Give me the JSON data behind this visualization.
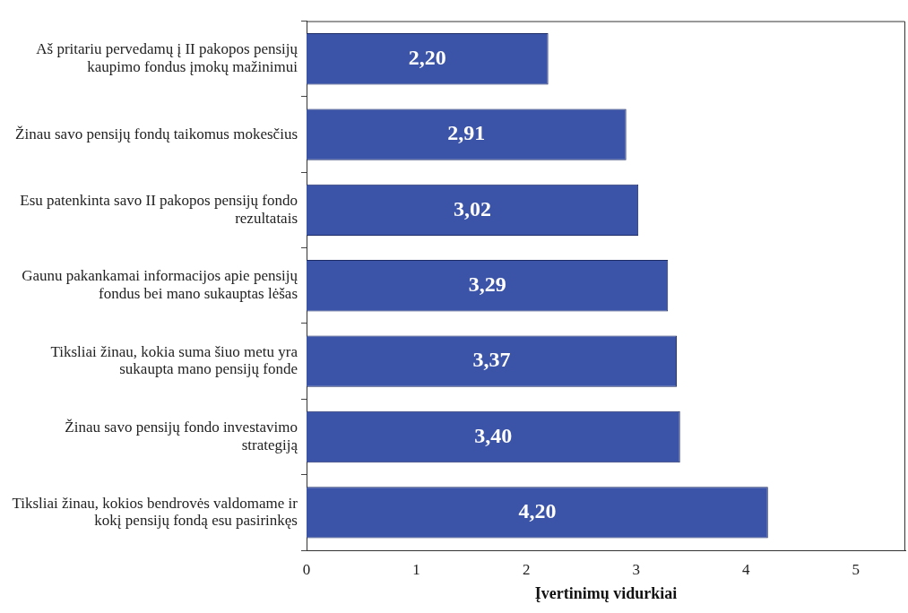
{
  "chart_data": {
    "type": "bar",
    "orientation": "horizontal",
    "xlabel": "Įvertinimų vidurkiai",
    "categories": [
      "Aš pritariu pervedamų į II pakopos pensijų kaupimo fondus įmokų mažinimui",
      "Žinau savo pensijų fondų taikomus mokesčius",
      "Esu patenkinta savo II pakopos pensijų fondo rezultatais",
      "Gaunu pakankamai informacijos apie pensijų fondus bei mano sukauptas lėšas",
      "Tiksliai žinau, kokia suma šiuo metu yra sukaupta mano pensijų fonde",
      "Žinau savo pensijų fondo investavimo strategiją",
      "Tiksliai žinau, kokios bendrovės valdomame ir kokį pensijų fondą esu pasirinkęs"
    ],
    "values": [
      2.2,
      2.91,
      3.02,
      3.29,
      3.37,
      3.4,
      4.2
    ],
    "value_labels": [
      "2,20",
      "2,91",
      "3,02",
      "3,29",
      "3,37",
      "3,40",
      "4,20"
    ],
    "color": "#3c54a8",
    "xlim": [
      0,
      5.45
    ],
    "xticks": [
      0,
      1,
      2,
      3,
      4,
      5
    ],
    "grid": false,
    "legend": false
  }
}
